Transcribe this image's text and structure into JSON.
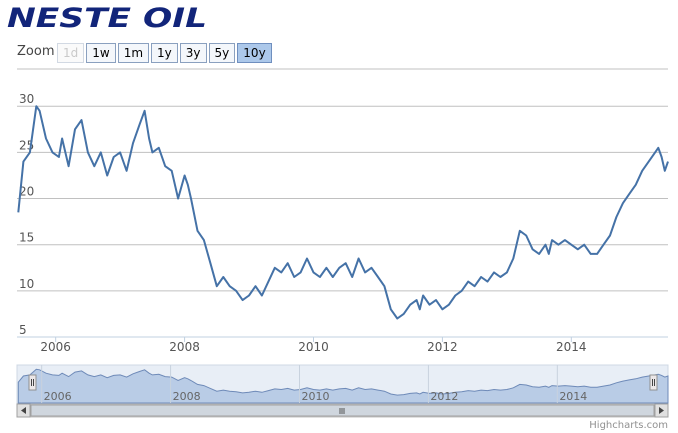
{
  "logo": {
    "text": "NESTE OIL"
  },
  "zoom": {
    "label": "Zoom",
    "buttons": [
      {
        "label": "1d",
        "state": "disabled"
      },
      {
        "label": "1w",
        "state": "normal"
      },
      {
        "label": "1m",
        "state": "normal"
      },
      {
        "label": "1y",
        "state": "normal"
      },
      {
        "label": "3y",
        "state": "normal"
      },
      {
        "label": "5y",
        "state": "normal"
      },
      {
        "label": "10y",
        "state": "active"
      }
    ]
  },
  "credits": "Highcharts.com",
  "colors": {
    "line": "#4572a7",
    "navigator_fill": "#b9cce6",
    "navigator_line": "#6e8ab8",
    "grid": "#c0c0c0",
    "logo": "#12257a"
  },
  "chart_data": {
    "type": "line",
    "title": "",
    "xlabel": "",
    "ylabel": "",
    "x_tick_labels": [
      "2006",
      "2008",
      "2010",
      "2012",
      "2014"
    ],
    "y_tick_labels": [
      "5",
      "10",
      "15",
      "20",
      "25",
      "30"
    ],
    "xlim": [
      2005.4,
      2015.5
    ],
    "ylim": [
      5,
      31
    ],
    "grid": true,
    "series": [
      {
        "x": [
          2005.42,
          2005.5,
          2005.6,
          2005.7,
          2005.75,
          2005.85,
          2005.95,
          2006.05,
          2006.1,
          2006.2,
          2006.3,
          2006.4,
          2006.5,
          2006.6,
          2006.7,
          2006.8,
          2006.9,
          2007.0,
          2007.1,
          2007.2,
          2007.3,
          2007.38,
          2007.45,
          2007.5,
          2007.6,
          2007.7,
          2007.8,
          2007.9,
          2008.0,
          2008.05,
          2008.1,
          2008.2,
          2008.3,
          2008.4,
          2008.5,
          2008.6,
          2008.7,
          2008.8,
          2008.9,
          2009.0,
          2009.1,
          2009.2,
          2009.3,
          2009.4,
          2009.5,
          2009.6,
          2009.7,
          2009.8,
          2009.9,
          2010.0,
          2010.1,
          2010.2,
          2010.3,
          2010.4,
          2010.5,
          2010.6,
          2010.7,
          2010.8,
          2010.9,
          2011.0,
          2011.1,
          2011.2,
          2011.3,
          2011.4,
          2011.5,
          2011.6,
          2011.65,
          2011.7,
          2011.8,
          2011.9,
          2012.0,
          2012.1,
          2012.2,
          2012.3,
          2012.4,
          2012.5,
          2012.6,
          2012.7,
          2012.8,
          2012.9,
          2013.0,
          2013.1,
          2013.2,
          2013.3,
          2013.4,
          2013.5,
          2013.6,
          2013.65,
          2013.7,
          2013.8,
          2013.9,
          2014.0,
          2014.1,
          2014.2,
          2014.3,
          2014.4,
          2014.5,
          2014.6,
          2014.7,
          2014.8,
          2014.9,
          2015.0,
          2015.1,
          2015.2,
          2015.3,
          2015.35,
          2015.4,
          2015.45,
          2015.5
        ],
        "y": [
          18.5,
          24.0,
          25.0,
          30.0,
          29.5,
          26.5,
          25.0,
          24.5,
          26.5,
          23.5,
          27.5,
          28.5,
          25.0,
          23.5,
          25.0,
          22.5,
          24.5,
          25.0,
          23.0,
          26.0,
          28.0,
          29.5,
          26.5,
          25.0,
          25.5,
          23.5,
          23.0,
          20.0,
          22.5,
          21.5,
          20.0,
          16.5,
          15.5,
          13.0,
          10.5,
          11.5,
          10.5,
          10.0,
          9.0,
          9.5,
          10.5,
          9.5,
          11.0,
          12.5,
          12.0,
          13.0,
          11.5,
          12.0,
          13.5,
          12.0,
          11.5,
          12.5,
          11.5,
          12.5,
          13.0,
          11.5,
          13.5,
          12.0,
          12.5,
          11.5,
          10.5,
          8.0,
          7.0,
          7.5,
          8.5,
          9.0,
          8.0,
          9.5,
          8.5,
          9.0,
          8.0,
          8.5,
          9.5,
          10.0,
          11.0,
          10.5,
          11.5,
          11.0,
          12.0,
          11.5,
          12.0,
          13.5,
          16.5,
          16.0,
          14.5,
          14.0,
          15.0,
          14.0,
          15.5,
          15.0,
          15.5,
          15.0,
          14.5,
          15.0,
          14.0,
          14.0,
          15.0,
          16.0,
          18.0,
          19.5,
          20.5,
          21.5,
          23.0,
          24.0,
          25.0,
          25.5,
          24.5,
          23.0,
          24.0
        ]
      }
    ],
    "navigator": {
      "x_tick_labels": [
        "2006",
        "2008",
        "2010",
        "2012",
        "2014"
      ],
      "selection": [
        2005.42,
        2015.5
      ]
    }
  }
}
